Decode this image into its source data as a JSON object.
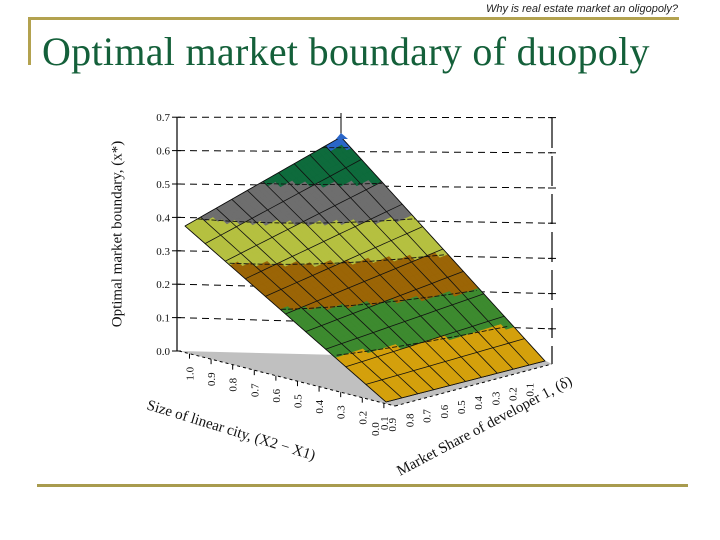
{
  "slide": {
    "subtitle": "Why is real estate market an oligopoly?",
    "title": "Optimal market boundary of duopoly",
    "rule_color": "#b3a24f",
    "title_color": "#14603a"
  },
  "chart_data": {
    "type": "surface3d",
    "title": "",
    "zlabel": "Optimal market boundary, (x*)",
    "xlabel": "Size of linear city, (X2 − X1)",
    "ylabel": "Market Share of developer 1, (δ)",
    "z_ticks": [
      "0.0",
      "0.1",
      "0.2",
      "0.3",
      "0.4",
      "0.5",
      "0.6",
      "0.7"
    ],
    "z_range": [
      0.0,
      0.7
    ],
    "x_ticks": [
      "1.0",
      "0.9",
      "0.8",
      "0.7",
      "0.6",
      "0.5",
      "0.4",
      "0.3",
      "0.2",
      "0.1"
    ],
    "y_ticks": [
      "0.0",
      "0.9",
      "0.8",
      "0.7",
      "0.6",
      "0.5",
      "0.4",
      "0.3",
      "0.2",
      "0.1"
    ],
    "grid": true,
    "surface_corners": {
      "peak": 0.63,
      "left_corner": 0.38,
      "front_corner": 0.0,
      "right_corner": 0.0
    },
    "color_bands": [
      {
        "range": [
          0.0,
          0.1
        ],
        "color": "#d4a00c"
      },
      {
        "range": [
          0.1,
          0.2
        ],
        "color": "#3d8a2f"
      },
      {
        "range": [
          0.2,
          0.3
        ],
        "color": "#9b6506"
      },
      {
        "range": [
          0.3,
          0.4
        ],
        "color": "#b5c040"
      },
      {
        "range": [
          0.4,
          0.5
        ],
        "color": "#6e6e6e"
      },
      {
        "range": [
          0.5,
          0.6
        ],
        "color": "#0e6b3c"
      },
      {
        "range": [
          0.6,
          0.7
        ],
        "color": "#2a66c8"
      }
    ],
    "floor_color": "#c0c0c0"
  }
}
